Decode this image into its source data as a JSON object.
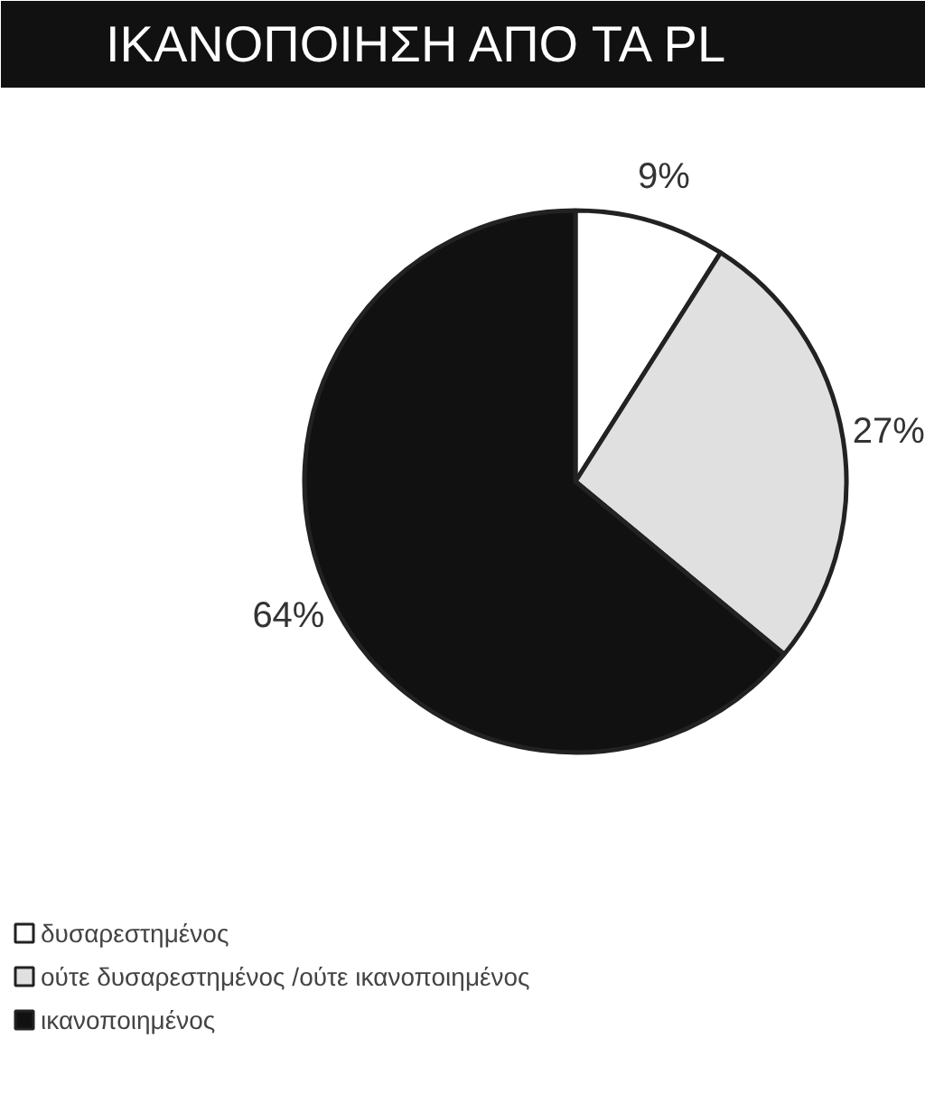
{
  "chart_data": {
    "type": "pie",
    "title": "ΙΚΑΝΟΠΟΙΗΣΗ ΑΠΟ ΤΑ PL",
    "categories": [
      "δυσαρεστημένος",
      "ούτε δυσαρεστημένος /ούτε ικανοποιημένος",
      "ικανοποιημένος"
    ],
    "values": [
      9,
      27,
      64
    ],
    "colors": [
      "#ffffff",
      "#e0e0e0",
      "#111111"
    ],
    "value_labels": [
      "9%",
      "27%",
      "64%"
    ],
    "legend": "bottom"
  }
}
